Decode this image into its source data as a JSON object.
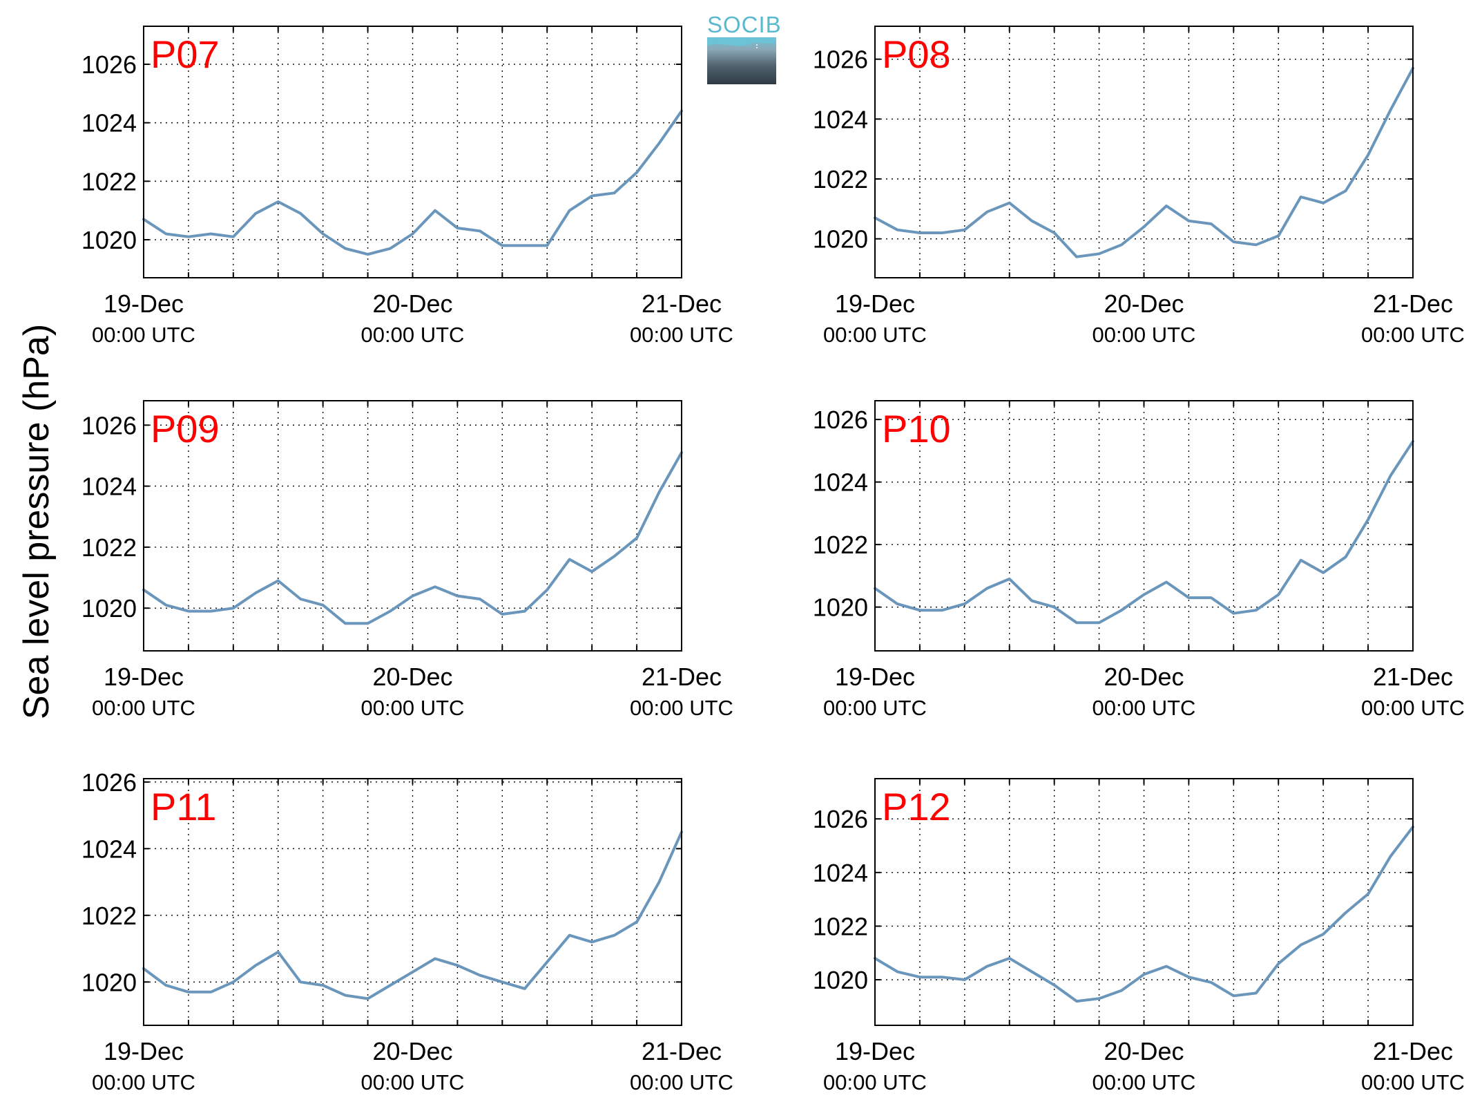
{
  "logo": {
    "text": "SOCIB",
    "color": "#5ab8cf"
  },
  "figure": {
    "ylabel": "Sea level pressure (hPa)",
    "line_color": "#6a96bb",
    "panel_label_color": "#ff0000"
  },
  "chart_data": [
    {
      "type": "line",
      "label": "P07",
      "x_range": [
        "2022-12-19T00:00Z",
        "2022-12-21T00:00Z"
      ],
      "ylim": [
        1018.7,
        1027.3
      ],
      "yticks": [
        1020,
        1022,
        1024,
        1026
      ],
      "xticks": [
        {
          "date": "19-Dec",
          "time": "00:00 UTC"
        },
        {
          "date": "20-Dec",
          "time": "00:00 UTC"
        },
        {
          "date": "21-Dec",
          "time": "00:00 UTC"
        }
      ],
      "grid": true,
      "x_hours": [
        0,
        2,
        4,
        6,
        8,
        10,
        12,
        14,
        16,
        18,
        20,
        22,
        24,
        26,
        28,
        30,
        32,
        34,
        36,
        38,
        40,
        42,
        44,
        46,
        48
      ],
      "values": [
        1020.7,
        1020.2,
        1020.1,
        1020.2,
        1020.1,
        1020.9,
        1021.3,
        1020.9,
        1020.2,
        1019.7,
        1019.5,
        1019.7,
        1020.2,
        1021.0,
        1020.4,
        1020.3,
        1019.8,
        1019.8,
        1019.8,
        1021.0,
        1021.5,
        1021.6,
        1022.3,
        1023.3,
        1024.4
      ]
    },
    {
      "type": "line",
      "label": "P08",
      "x_range": [
        "2022-12-19T00:00Z",
        "2022-12-21T00:00Z"
      ],
      "ylim": [
        1018.7,
        1027.1
      ],
      "yticks": [
        1020,
        1022,
        1024,
        1026
      ],
      "xticks": [
        {
          "date": "19-Dec",
          "time": "00:00 UTC"
        },
        {
          "date": "20-Dec",
          "time": "00:00 UTC"
        },
        {
          "date": "21-Dec",
          "time": "00:00 UTC"
        }
      ],
      "grid": true,
      "x_hours": [
        0,
        2,
        4,
        6,
        8,
        10,
        12,
        14,
        16,
        18,
        20,
        22,
        24,
        26,
        28,
        30,
        32,
        34,
        36,
        38,
        40,
        42,
        44,
        46,
        48
      ],
      "values": [
        1020.7,
        1020.3,
        1020.2,
        1020.2,
        1020.3,
        1020.9,
        1021.2,
        1020.6,
        1020.2,
        1019.4,
        1019.5,
        1019.8,
        1020.4,
        1021.1,
        1020.6,
        1020.5,
        1019.9,
        1019.8,
        1020.1,
        1021.4,
        1021.2,
        1021.6,
        1022.8,
        1024.3,
        1025.7
      ]
    },
    {
      "type": "line",
      "label": "P09",
      "x_range": [
        "2022-12-19T00:00Z",
        "2022-12-21T00:00Z"
      ],
      "ylim": [
        1018.6,
        1026.8
      ],
      "yticks": [
        1020,
        1022,
        1024,
        1026
      ],
      "xticks": [
        {
          "date": "19-Dec",
          "time": "00:00 UTC"
        },
        {
          "date": "20-Dec",
          "time": "00:00 UTC"
        },
        {
          "date": "21-Dec",
          "time": "00:00 UTC"
        }
      ],
      "grid": true,
      "x_hours": [
        0,
        2,
        4,
        6,
        8,
        10,
        12,
        14,
        16,
        18,
        20,
        22,
        24,
        26,
        28,
        30,
        32,
        34,
        36,
        38,
        40,
        42,
        44,
        46,
        48
      ],
      "values": [
        1020.6,
        1020.1,
        1019.9,
        1019.9,
        1020.0,
        1020.5,
        1020.9,
        1020.3,
        1020.1,
        1019.5,
        1019.5,
        1019.9,
        1020.4,
        1020.7,
        1020.4,
        1020.3,
        1019.8,
        1019.9,
        1020.6,
        1021.6,
        1021.2,
        1021.7,
        1022.3,
        1023.8,
        1025.1
      ]
    },
    {
      "type": "line",
      "label": "P10",
      "x_range": [
        "2022-12-19T00:00Z",
        "2022-12-21T00:00Z"
      ],
      "ylim": [
        1018.6,
        1026.6
      ],
      "yticks": [
        1020,
        1022,
        1024,
        1026
      ],
      "xticks": [
        {
          "date": "19-Dec",
          "time": "00:00 UTC"
        },
        {
          "date": "20-Dec",
          "time": "00:00 UTC"
        },
        {
          "date": "21-Dec",
          "time": "00:00 UTC"
        }
      ],
      "grid": true,
      "x_hours": [
        0,
        2,
        4,
        6,
        8,
        10,
        12,
        14,
        16,
        18,
        20,
        22,
        24,
        26,
        28,
        30,
        32,
        34,
        36,
        38,
        40,
        42,
        44,
        46,
        48
      ],
      "values": [
        1020.6,
        1020.1,
        1019.9,
        1019.9,
        1020.1,
        1020.6,
        1020.9,
        1020.2,
        1020.0,
        1019.5,
        1019.5,
        1019.9,
        1020.4,
        1020.8,
        1020.3,
        1020.3,
        1019.8,
        1019.9,
        1020.4,
        1021.5,
        1021.1,
        1021.6,
        1022.8,
        1024.2,
        1025.3
      ]
    },
    {
      "type": "line",
      "label": "P11",
      "x_range": [
        "2022-12-19T00:00Z",
        "2022-12-21T00:00Z"
      ],
      "ylim": [
        1018.7,
        1026.1
      ],
      "yticks": [
        1020,
        1022,
        1024,
        1026
      ],
      "xticks": [
        {
          "date": "19-Dec",
          "time": "00:00 UTC"
        },
        {
          "date": "20-Dec",
          "time": "00:00 UTC"
        },
        {
          "date": "21-Dec",
          "time": "00:00 UTC"
        }
      ],
      "grid": true,
      "x_hours": [
        0,
        2,
        4,
        6,
        8,
        10,
        12,
        14,
        16,
        18,
        20,
        22,
        24,
        26,
        28,
        30,
        32,
        34,
        36,
        38,
        40,
        42,
        44,
        46,
        48
      ],
      "values": [
        1020.4,
        1019.9,
        1019.7,
        1019.7,
        1020.0,
        1020.5,
        1020.9,
        1020.0,
        1019.9,
        1019.6,
        1019.5,
        1019.9,
        1020.3,
        1020.7,
        1020.5,
        1020.2,
        1020.0,
        1019.8,
        1020.6,
        1021.4,
        1021.2,
        1021.4,
        1021.8,
        1023.0,
        1024.5
      ]
    },
    {
      "type": "line",
      "label": "P12",
      "x_range": [
        "2022-12-19T00:00Z",
        "2022-12-21T00:00Z"
      ],
      "ylim": [
        1018.3,
        1027.5
      ],
      "yticks": [
        1020,
        1022,
        1024,
        1026
      ],
      "xticks": [
        {
          "date": "19-Dec",
          "time": "00:00 UTC"
        },
        {
          "date": "20-Dec",
          "time": "00:00 UTC"
        },
        {
          "date": "21-Dec",
          "time": "00:00 UTC"
        }
      ],
      "grid": true,
      "x_hours": [
        0,
        2,
        4,
        6,
        8,
        10,
        12,
        14,
        16,
        18,
        20,
        22,
        24,
        26,
        28,
        30,
        32,
        34,
        36,
        38,
        40,
        42,
        44,
        46,
        48
      ],
      "values": [
        1020.8,
        1020.3,
        1020.1,
        1020.1,
        1020.0,
        1020.5,
        1020.8,
        1020.3,
        1019.8,
        1019.2,
        1019.3,
        1019.6,
        1020.2,
        1020.5,
        1020.1,
        1019.9,
        1019.4,
        1019.5,
        1020.6,
        1021.3,
        1021.7,
        1022.5,
        1023.2,
        1024.6,
        1025.7
      ]
    }
  ]
}
